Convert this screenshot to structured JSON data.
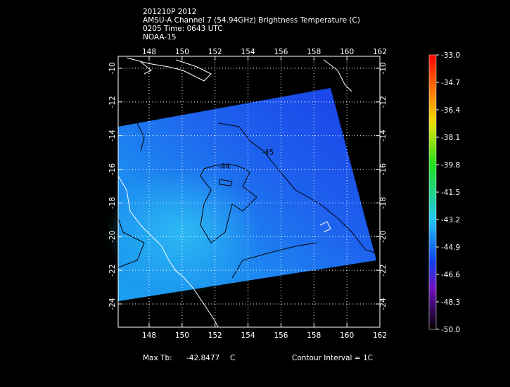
{
  "header": {
    "lines": [
      "201210P 2012",
      "AMSU-A Channel 7 (54.94GHz) Brightness Temperature (C)",
      "0205 Time: 0643 UTC",
      "NOAA-15"
    ]
  },
  "map": {
    "xticks": [
      148,
      150,
      152,
      154,
      156,
      158,
      160,
      162
    ],
    "yticks": [
      -10,
      -12,
      -14,
      -16,
      -18,
      -20,
      -22,
      -24
    ],
    "contour_labels": [
      "-44",
      "-45"
    ]
  },
  "colorbar": {
    "labels": [
      "-33.0",
      "-34.7",
      "-36.4",
      "-38.1",
      "-39.8",
      "-41.5",
      "-43.2",
      "-44.9",
      "-46.6",
      "-48.3",
      "-50.0"
    ]
  },
  "footer": {
    "max_label": "Max Tb:",
    "max_value": "-42.8477",
    "max_unit": "C",
    "contour_interval": "Contour Interval = 1C"
  }
}
